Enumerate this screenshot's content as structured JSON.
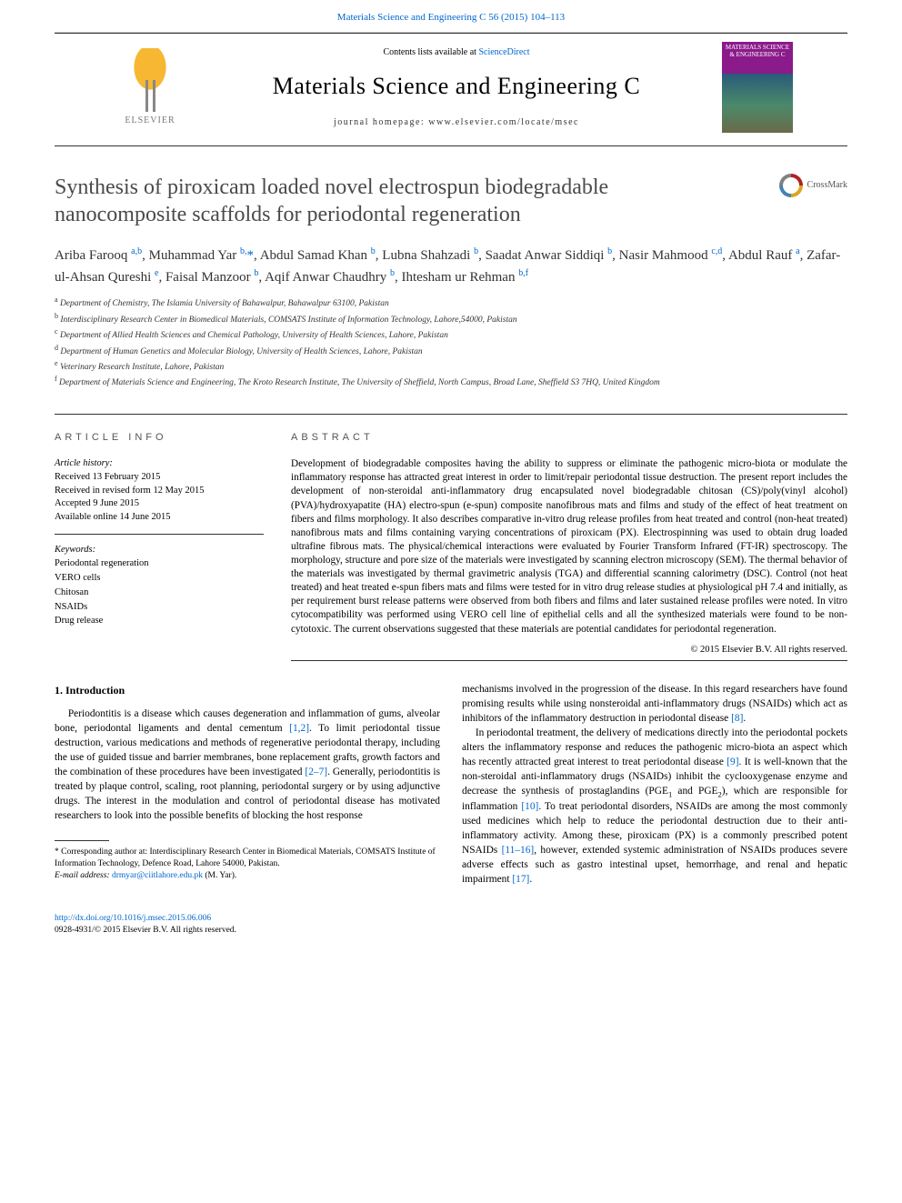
{
  "header": {
    "citation_link": "Materials Science and Engineering C 56 (2015) 104–113",
    "contents_prefix": "Contents lists available at ",
    "contents_link": "ScienceDirect",
    "journal_title": "Materials Science and Engineering C",
    "homepage_prefix": "journal homepage: ",
    "homepage_url": "www.elsevier.com/locate/msec",
    "publisher": "ELSEVIER",
    "cover_text": "MATERIALS SCIENCE & ENGINEERING C"
  },
  "article": {
    "title": "Synthesis of piroxicam loaded novel electrospun biodegradable nanocomposite scaffolds for periodontal regeneration",
    "crossmark_label": "CrossMark",
    "authors_html": "Ariba Farooq <sup>a,b</sup>, Muhammad Yar <sup>b,</sup><span class='asterisk'>*</span>, Abdul Samad Khan <sup>b</sup>, Lubna Shahzadi <sup>b</sup>, Saadat Anwar Siddiqi <sup>b</sup>, Nasir Mahmood <sup>c,d</sup>, Abdul Rauf <sup>a</sup>, Zafar-ul-Ahsan Qureshi <sup>e</sup>, Faisal Manzoor <sup>b</sup>, Aqif Anwar Chaudhry <sup>b</sup>, Ihtesham ur Rehman <sup>b,f</sup>",
    "affiliations": [
      {
        "sup": "a",
        "text": "Department of Chemistry, The Islamia University of Bahawalpur, Bahawalpur 63100, Pakistan"
      },
      {
        "sup": "b",
        "text": "Interdisciplinary Research Center in Biomedical Materials, COMSATS Institute of Information Technology, Lahore,54000, Pakistan"
      },
      {
        "sup": "c",
        "text": "Department of Allied Health Sciences and Chemical Pathology, University of Health Sciences, Lahore, Pakistan"
      },
      {
        "sup": "d",
        "text": "Department of Human Genetics and Molecular Biology, University of Health Sciences, Lahore, Pakistan"
      },
      {
        "sup": "e",
        "text": "Veterinary Research Institute, Lahore, Pakistan"
      },
      {
        "sup": "f",
        "text": "Department of Materials Science and Engineering, The Kroto Research Institute, The University of Sheffield, North Campus, Broad Lane, Sheffield S3 7HQ, United Kingdom"
      }
    ]
  },
  "info": {
    "section_heading": "ARTICLE INFO",
    "history_label": "Article history:",
    "history": [
      "Received 13 February 2015",
      "Received in revised form 12 May 2015",
      "Accepted 9 June 2015",
      "Available online 14 June 2015"
    ],
    "keywords_label": "Keywords:",
    "keywords": [
      "Periodontal regeneration",
      "VERO cells",
      "Chitosan",
      "NSAIDs",
      "Drug release"
    ]
  },
  "abstract": {
    "heading": "ABSTRACT",
    "text": "Development of biodegradable composites having the ability to suppress or eliminate the pathogenic micro-biota or modulate the inflammatory response has attracted great interest in order to limit/repair periodontal tissue destruction. The present report includes the development of non-steroidal anti-inflammatory drug encapsulated novel biodegradable chitosan (CS)/poly(vinyl alcohol) (PVA)/hydroxyapatite (HA) electro-spun (e-spun) composite nanofibrous mats and films and study of the effect of heat treatment on fibers and films morphology. It also describes comparative in-vitro drug release profiles from heat treated and control (non-heat treated) nanofibrous mats and films containing varying concentrations of piroxicam (PX). Electrospinning was used to obtain drug loaded ultrafine fibrous mats. The physical/chemical interactions were evaluated by Fourier Transform Infrared (FT-IR) spectroscopy. The morphology, structure and pore size of the materials were investigated by scanning electron microscopy (SEM). The thermal behavior of the materials was investigated by thermal gravimetric analysis (TGA) and differential scanning calorimetry (DSC). Control (not heat treated) and heat treated e-spun fibers mats and films were tested for in vitro drug release studies at physiological pH 7.4 and initially, as per requirement burst release patterns were observed from both fibers and films and later sustained release profiles were noted. In vitro cytocompatibility was performed using VERO cell line of epithelial cells and all the synthesized materials were found to be non-cytotoxic. The current observations suggested that these materials are potential candidates for periodontal regeneration.",
    "copyright": "© 2015 Elsevier B.V. All rights reserved."
  },
  "body": {
    "intro_heading": "1. Introduction",
    "left_p1_pre": "Periodontitis is a disease which causes degeneration and inflammation of gums, alveolar bone, periodontal ligaments and dental cementum ",
    "left_p1_ref1": "[1,2]",
    "left_p1_mid": ". To limit periodontal tissue destruction, various medications and methods of regenerative periodontal therapy, including the use of guided tissue and barrier membranes, bone replacement grafts, growth factors and the combination of these procedures have been investigated ",
    "left_p1_ref2": "[2–7]",
    "left_p1_post": ". Generally, periodontitis is treated by plaque control, scaling, root planning, periodontal surgery or by using adjunctive drugs. The interest in the modulation and control of periodontal disease has motivated researchers to look into the possible benefits of blocking the host response",
    "right_p1_pre": "mechanisms involved in the progression of the disease. In this regard researchers have found promising results while using nonsteroidal anti-inflammatory drugs (NSAIDs) which act as inhibitors of the inflammatory destruction in periodontal disease ",
    "right_p1_ref": "[8]",
    "right_p1_post": ".",
    "right_p2_pre": "In periodontal treatment, the delivery of medications directly into the periodontal pockets alters the inflammatory response and reduces the pathogenic micro-biota an aspect which has recently attracted great interest to treat periodontal disease ",
    "right_p2_ref1": "[9]",
    "right_p2_mid1": ". It is well-known that the non-steroidal anti-inflammatory drugs (NSAIDs) inhibit the cyclooxygenase enzyme and decrease the synthesis of prostaglandins (PGE",
    "right_p2_sub1": "1",
    "right_p2_mid2": " and PGE",
    "right_p2_sub2": "2",
    "right_p2_mid3": "), which are responsible for inflammation ",
    "right_p2_ref2": "[10]",
    "right_p2_mid4": ". To treat periodontal disorders, NSAIDs are among the most commonly used medicines which help to reduce the periodontal destruction due to their anti-inflammatory activity. Among these, piroxicam (PX) is a commonly prescribed potent NSAIDs ",
    "right_p2_ref3": "[11–16]",
    "right_p2_mid5": ", however, extended systemic administration of NSAIDs produces severe adverse effects such as gastro intestinal upset, hemorrhage, and renal and hepatic impairment ",
    "right_p2_ref4": "[17]",
    "right_p2_post": "."
  },
  "footnote": {
    "corresponding": "* Corresponding author at: Interdisciplinary Research Center in Biomedical Materials, COMSATS Institute of Information Technology, Defence Road, Lahore 54000, Pakistan.",
    "email_label": "E-mail address: ",
    "email": "drmyar@ciitlahore.edu.pk",
    "email_suffix": " (M. Yar)."
  },
  "footer": {
    "doi": "http://dx.doi.org/10.1016/j.msec.2015.06.006",
    "issn_line": "0928-4931/© 2015 Elsevier B.V. All rights reserved."
  },
  "colors": {
    "link": "#0066cc",
    "text": "#000000",
    "heading_gray": "#4a4a4a",
    "border": "#333333"
  }
}
